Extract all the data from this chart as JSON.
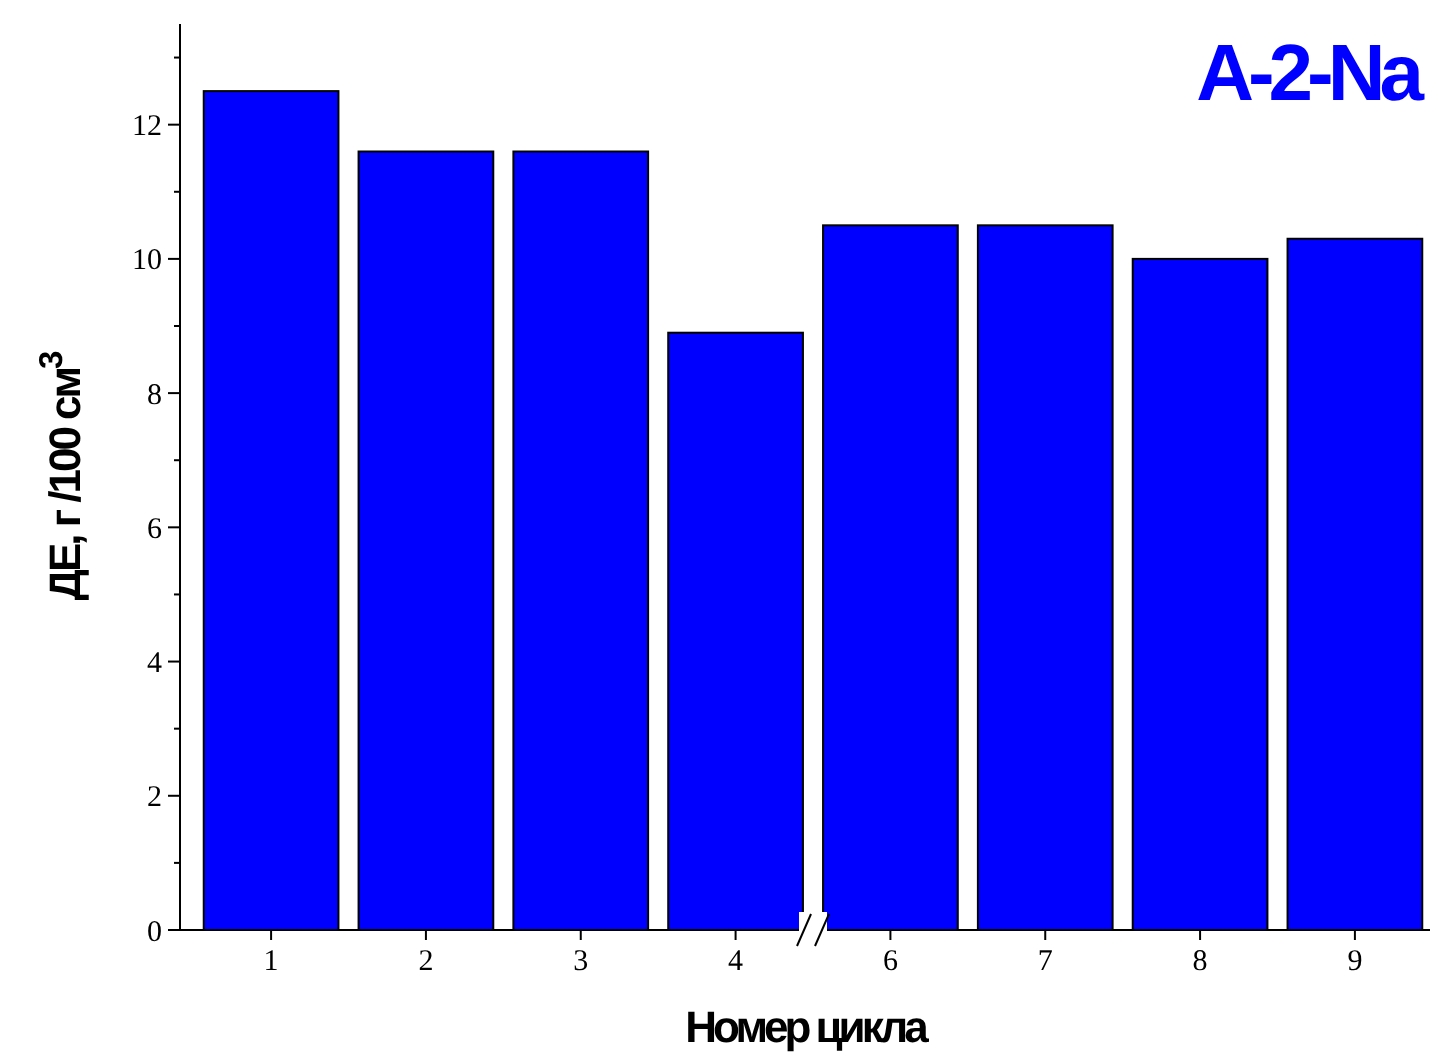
{
  "chart_data": {
    "type": "bar",
    "title": "A-2-Na",
    "xlabel": "Номер цикла",
    "ylabel": "ДЕ, г /100 см$^{3}$",
    "categories": [
      "1",
      "2",
      "3",
      "4",
      "6",
      "7",
      "8",
      "9"
    ],
    "values": [
      12.5,
      11.6,
      11.6,
      8.9,
      10.5,
      10.5,
      10.0,
      10.3
    ],
    "color": "#0000ff",
    "ylim": [
      0,
      13.5
    ],
    "yticks": [
      0,
      {
        "value": 1,
        "label": null
      },
      2,
      {
        "value": 3,
        "label": null
      },
      4,
      {
        "value": 5,
        "label": null
      },
      6,
      {
        "value": 7,
        "label": null
      },
      8,
      {
        "value": 9,
        "label": null
      },
      10,
      {
        "value": 11,
        "label": null
      },
      12,
      {
        "value": 13,
        "label": null
      }
    ],
    "grid": false
  }
}
